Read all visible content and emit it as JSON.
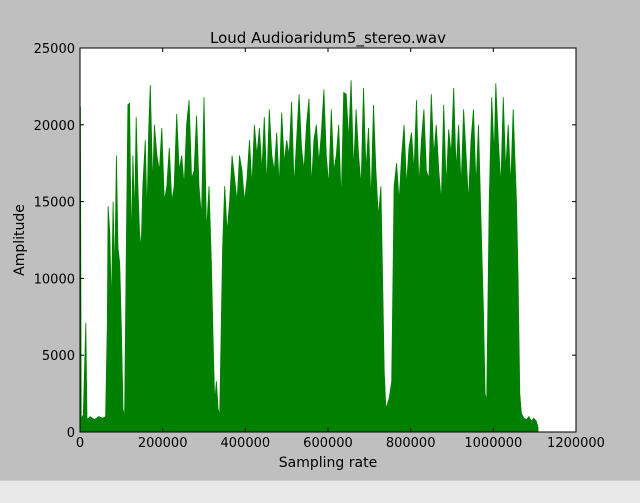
{
  "window": {
    "statusbar_text": ""
  },
  "chart_data": {
    "type": "area",
    "title": "Loud Audioaridum5_stereo.wav",
    "xlabel": "Sampling rate",
    "ylabel": "Amplitude",
    "xlim": [
      0,
      1200000
    ],
    "ylim": [
      0,
      25000
    ],
    "xticks": [
      0,
      200000,
      400000,
      600000,
      800000,
      1000000,
      1200000
    ],
    "yticks": [
      0,
      5000,
      10000,
      15000,
      20000,
      25000
    ],
    "xtick_labels": [
      "0",
      "200000",
      "400000",
      "600000",
      "800000",
      "1000000",
      "1200000"
    ],
    "ytick_labels": [
      "0",
      "5000",
      "10000",
      "15000",
      "20000",
      "25000"
    ],
    "grid": false,
    "series": [
      {
        "color": "#008000",
        "points": [
          [
            0,
            200
          ],
          [
            1000,
            21200
          ],
          [
            3000,
            900
          ],
          [
            8000,
            1100
          ],
          [
            14000,
            7100
          ],
          [
            17000,
            800
          ],
          [
            25000,
            1000
          ],
          [
            35000,
            800
          ],
          [
            45000,
            1000
          ],
          [
            55000,
            900
          ],
          [
            62000,
            1000
          ],
          [
            66000,
            7000
          ],
          [
            68000,
            14700
          ],
          [
            72000,
            13000
          ],
          [
            76000,
            8000
          ],
          [
            80000,
            15000
          ],
          [
            84000,
            10000
          ],
          [
            88000,
            18000
          ],
          [
            92000,
            12000
          ],
          [
            96000,
            11000
          ],
          [
            100000,
            7000
          ],
          [
            104000,
            1500
          ],
          [
            108000,
            1000
          ],
          [
            112000,
            12000
          ],
          [
            116000,
            21300
          ],
          [
            120000,
            21400
          ],
          [
            124000,
            12000
          ],
          [
            128000,
            18000
          ],
          [
            132000,
            14000
          ],
          [
            136000,
            20500
          ],
          [
            140000,
            16000
          ],
          [
            144000,
            13000
          ],
          [
            148000,
            12000
          ],
          [
            152000,
            16000
          ],
          [
            158000,
            19000
          ],
          [
            162000,
            14000
          ],
          [
            166000,
            19500
          ],
          [
            170000,
            22600
          ],
          [
            176000,
            16000
          ],
          [
            180000,
            20000
          ],
          [
            186000,
            18000
          ],
          [
            192000,
            17000
          ],
          [
            198000,
            19800
          ],
          [
            204000,
            15000
          ],
          [
            210000,
            16000
          ],
          [
            216000,
            18500
          ],
          [
            222000,
            15000
          ],
          [
            228000,
            16000
          ],
          [
            234000,
            20700
          ],
          [
            240000,
            17000
          ],
          [
            246000,
            18000
          ],
          [
            252000,
            16000
          ],
          [
            258000,
            20000
          ],
          [
            264000,
            21600
          ],
          [
            270000,
            16500
          ],
          [
            276000,
            17000
          ],
          [
            282000,
            20600
          ],
          [
            288000,
            16000
          ],
          [
            294000,
            14000
          ],
          [
            300000,
            21800
          ],
          [
            306000,
            13000
          ],
          [
            312000,
            16000
          ],
          [
            318000,
            11000
          ],
          [
            322000,
            6000
          ],
          [
            326000,
            2000
          ],
          [
            330000,
            3300
          ],
          [
            334000,
            1500
          ],
          [
            338000,
            1100
          ],
          [
            345000,
            12000
          ],
          [
            350000,
            16000
          ],
          [
            356000,
            13000
          ],
          [
            362000,
            15000
          ],
          [
            368000,
            18000
          ],
          [
            374000,
            16500
          ],
          [
            380000,
            15000
          ],
          [
            386000,
            18000
          ],
          [
            392000,
            17000
          ],
          [
            398000,
            15000
          ],
          [
            404000,
            16500
          ],
          [
            410000,
            19000
          ],
          [
            416000,
            16000
          ],
          [
            422000,
            20000
          ],
          [
            428000,
            18000
          ],
          [
            434000,
            19800
          ],
          [
            440000,
            17000
          ],
          [
            446000,
            20500
          ],
          [
            452000,
            16000
          ],
          [
            458000,
            21000
          ],
          [
            464000,
            18000
          ],
          [
            470000,
            17000
          ],
          [
            476000,
            19500
          ],
          [
            482000,
            16000
          ],
          [
            488000,
            20800
          ],
          [
            494000,
            17500
          ],
          [
            500000,
            19000
          ],
          [
            506000,
            18000
          ],
          [
            512000,
            21500
          ],
          [
            518000,
            16000
          ],
          [
            524000,
            19000
          ],
          [
            530000,
            22000
          ],
          [
            536000,
            18500
          ],
          [
            542000,
            17000
          ],
          [
            548000,
            20000
          ],
          [
            554000,
            21700
          ],
          [
            560000,
            16000
          ],
          [
            566000,
            19000
          ],
          [
            572000,
            20000
          ],
          [
            578000,
            17500
          ],
          [
            584000,
            19500
          ],
          [
            590000,
            22300
          ],
          [
            596000,
            18000
          ],
          [
            602000,
            16000
          ],
          [
            608000,
            21000
          ],
          [
            614000,
            17000
          ],
          [
            620000,
            18000
          ],
          [
            626000,
            20000
          ],
          [
            632000,
            15000
          ],
          [
            638000,
            22100
          ],
          [
            644000,
            22000
          ],
          [
            650000,
            19000
          ],
          [
            656000,
            22900
          ],
          [
            662000,
            17000
          ],
          [
            668000,
            21000
          ],
          [
            674000,
            18000
          ],
          [
            680000,
            16000
          ],
          [
            686000,
            22400
          ],
          [
            692000,
            17000
          ],
          [
            698000,
            19800
          ],
          [
            704000,
            15000
          ],
          [
            710000,
            21300
          ],
          [
            716000,
            17000
          ],
          [
            722000,
            14000
          ],
          [
            728000,
            16000
          ],
          [
            732000,
            10000
          ],
          [
            736000,
            4000
          ],
          [
            740000,
            1500
          ],
          [
            748000,
            2200
          ],
          [
            754000,
            3300
          ],
          [
            760000,
            16000
          ],
          [
            766000,
            17500
          ],
          [
            772000,
            15000
          ],
          [
            778000,
            18000
          ],
          [
            784000,
            20000
          ],
          [
            790000,
            16000
          ],
          [
            796000,
            18500
          ],
          [
            802000,
            19500
          ],
          [
            808000,
            17000
          ],
          [
            814000,
            21600
          ],
          [
            820000,
            16000
          ],
          [
            826000,
            19000
          ],
          [
            832000,
            21000
          ],
          [
            838000,
            17000
          ],
          [
            844000,
            16500
          ],
          [
            850000,
            22000
          ],
          [
            856000,
            18000
          ],
          [
            862000,
            20000
          ],
          [
            868000,
            17000
          ],
          [
            874000,
            15000
          ],
          [
            880000,
            21300
          ],
          [
            886000,
            16000
          ],
          [
            892000,
            19700
          ],
          [
            898000,
            18000
          ],
          [
            904000,
            22400
          ],
          [
            910000,
            17000
          ],
          [
            916000,
            20000
          ],
          [
            922000,
            16000
          ],
          [
            928000,
            21000
          ],
          [
            934000,
            18000
          ],
          [
            940000,
            15000
          ],
          [
            946000,
            19000
          ],
          [
            952000,
            21000
          ],
          [
            958000,
            16000
          ],
          [
            964000,
            20000
          ],
          [
            970000,
            14000
          ],
          [
            976000,
            8000
          ],
          [
            980000,
            2500
          ],
          [
            984000,
            2000
          ],
          [
            990000,
            15000
          ],
          [
            996000,
            21800
          ],
          [
            1002000,
            18000
          ],
          [
            1006000,
            22700
          ],
          [
            1012000,
            19000
          ],
          [
            1018000,
            16000
          ],
          [
            1024000,
            21800
          ],
          [
            1030000,
            17000
          ],
          [
            1036000,
            20000
          ],
          [
            1042000,
            16000
          ],
          [
            1048000,
            21000
          ],
          [
            1052000,
            18000
          ],
          [
            1056000,
            15000
          ],
          [
            1060000,
            10000
          ],
          [
            1064000,
            2500
          ],
          [
            1068000,
            1200
          ],
          [
            1074000,
            900
          ],
          [
            1080000,
            800
          ],
          [
            1086000,
            1000
          ],
          [
            1092000,
            700
          ],
          [
            1098000,
            900
          ],
          [
            1104000,
            700
          ],
          [
            1108000,
            300
          ]
        ]
      }
    ]
  }
}
